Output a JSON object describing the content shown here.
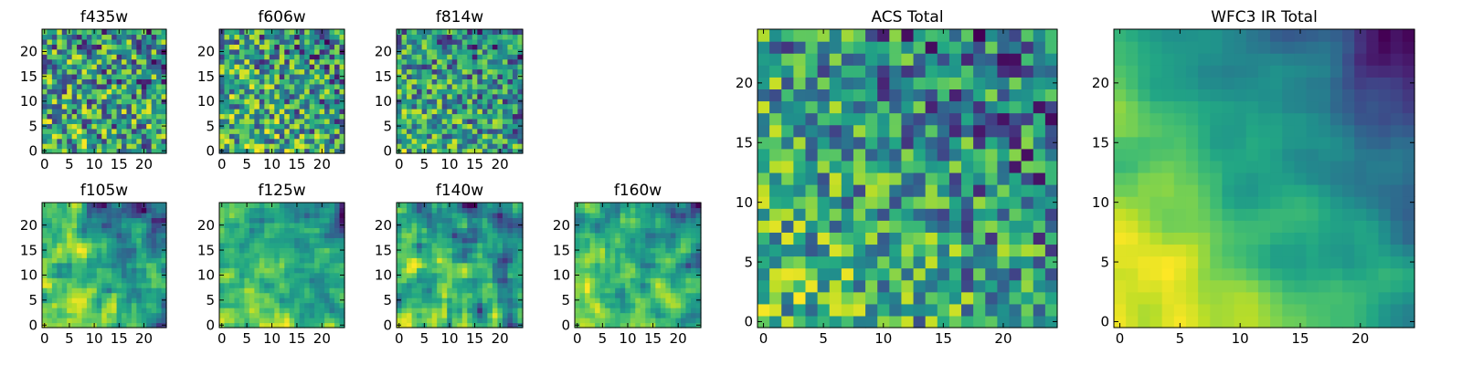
{
  "chart_data": [
    {
      "type": "heatmap",
      "title": "f435w",
      "colormap": "viridis",
      "grid": false,
      "xlim": [
        0,
        24
      ],
      "ylim": [
        0,
        24
      ],
      "xticks": [
        0,
        5,
        10,
        15,
        20
      ],
      "yticks": [
        0,
        5,
        10,
        15,
        20
      ],
      "size": 25,
      "seed": 11,
      "smooth": 0,
      "gradient": 0.12
    },
    {
      "type": "heatmap",
      "title": "f606w",
      "colormap": "viridis",
      "grid": false,
      "xlim": [
        0,
        24
      ],
      "ylim": [
        0,
        24
      ],
      "xticks": [
        0,
        5,
        10,
        15,
        20
      ],
      "yticks": [
        0,
        5,
        10,
        15,
        20
      ],
      "size": 25,
      "seed": 23,
      "smooth": 0,
      "gradient": 0.22
    },
    {
      "type": "heatmap",
      "title": "f814w",
      "colormap": "viridis",
      "grid": false,
      "xlim": [
        0,
        24
      ],
      "ylim": [
        0,
        24
      ],
      "xticks": [
        0,
        5,
        10,
        15,
        20
      ],
      "yticks": [
        0,
        5,
        10,
        15,
        20
      ],
      "size": 25,
      "seed": 37,
      "smooth": 0,
      "gradient": 0.25
    },
    {
      "type": "heatmap",
      "title": "f105w",
      "colormap": "viridis",
      "grid": false,
      "xlim": [
        0,
        24
      ],
      "ylim": [
        0,
        24
      ],
      "xticks": [
        0,
        5,
        10,
        15,
        20
      ],
      "yticks": [
        0,
        5,
        10,
        15,
        20
      ],
      "size": 25,
      "seed": 41,
      "smooth": 1,
      "gradient": 0.4
    },
    {
      "type": "heatmap",
      "title": "f125w",
      "colormap": "viridis",
      "grid": false,
      "xlim": [
        0,
        24
      ],
      "ylim": [
        0,
        24
      ],
      "xticks": [
        0,
        5,
        10,
        15,
        20
      ],
      "yticks": [
        0,
        5,
        10,
        15,
        20
      ],
      "size": 25,
      "seed": 53,
      "smooth": 1,
      "gradient": 0.4
    },
    {
      "type": "heatmap",
      "title": "f140w",
      "colormap": "viridis",
      "grid": false,
      "xlim": [
        0,
        24
      ],
      "ylim": [
        0,
        24
      ],
      "xticks": [
        0,
        5,
        10,
        15,
        20
      ],
      "yticks": [
        0,
        5,
        10,
        15,
        20
      ],
      "size": 25,
      "seed": 67,
      "smooth": 1,
      "gradient": 0.35
    },
    {
      "type": "heatmap",
      "title": "f160w",
      "colormap": "viridis",
      "grid": false,
      "xlim": [
        0,
        24
      ],
      "ylim": [
        0,
        24
      ],
      "xticks": [
        0,
        5,
        10,
        15,
        20
      ],
      "yticks": [
        0,
        5,
        10,
        15,
        20
      ],
      "size": 25,
      "seed": 79,
      "smooth": 1,
      "gradient": 0.45
    },
    {
      "type": "heatmap",
      "title": "ACS Total",
      "colormap": "viridis",
      "grid": false,
      "xlim": [
        0,
        24
      ],
      "ylim": [
        0,
        24
      ],
      "xticks": [
        0,
        5,
        10,
        15,
        20
      ],
      "yticks": [
        0,
        5,
        10,
        15,
        20
      ],
      "size": 25,
      "seed": 97,
      "smooth": 0,
      "gradient": 0.3
    },
    {
      "type": "heatmap",
      "title": "WFC3 IR Total",
      "colormap": "viridis",
      "grid": false,
      "xlim": [
        0,
        24
      ],
      "ylim": [
        0,
        24
      ],
      "xticks": [
        0,
        5,
        10,
        15,
        20
      ],
      "yticks": [
        0,
        5,
        10,
        15,
        20
      ],
      "size": 25,
      "seed": 131,
      "smooth": 2,
      "gradient": 0.75
    }
  ]
}
